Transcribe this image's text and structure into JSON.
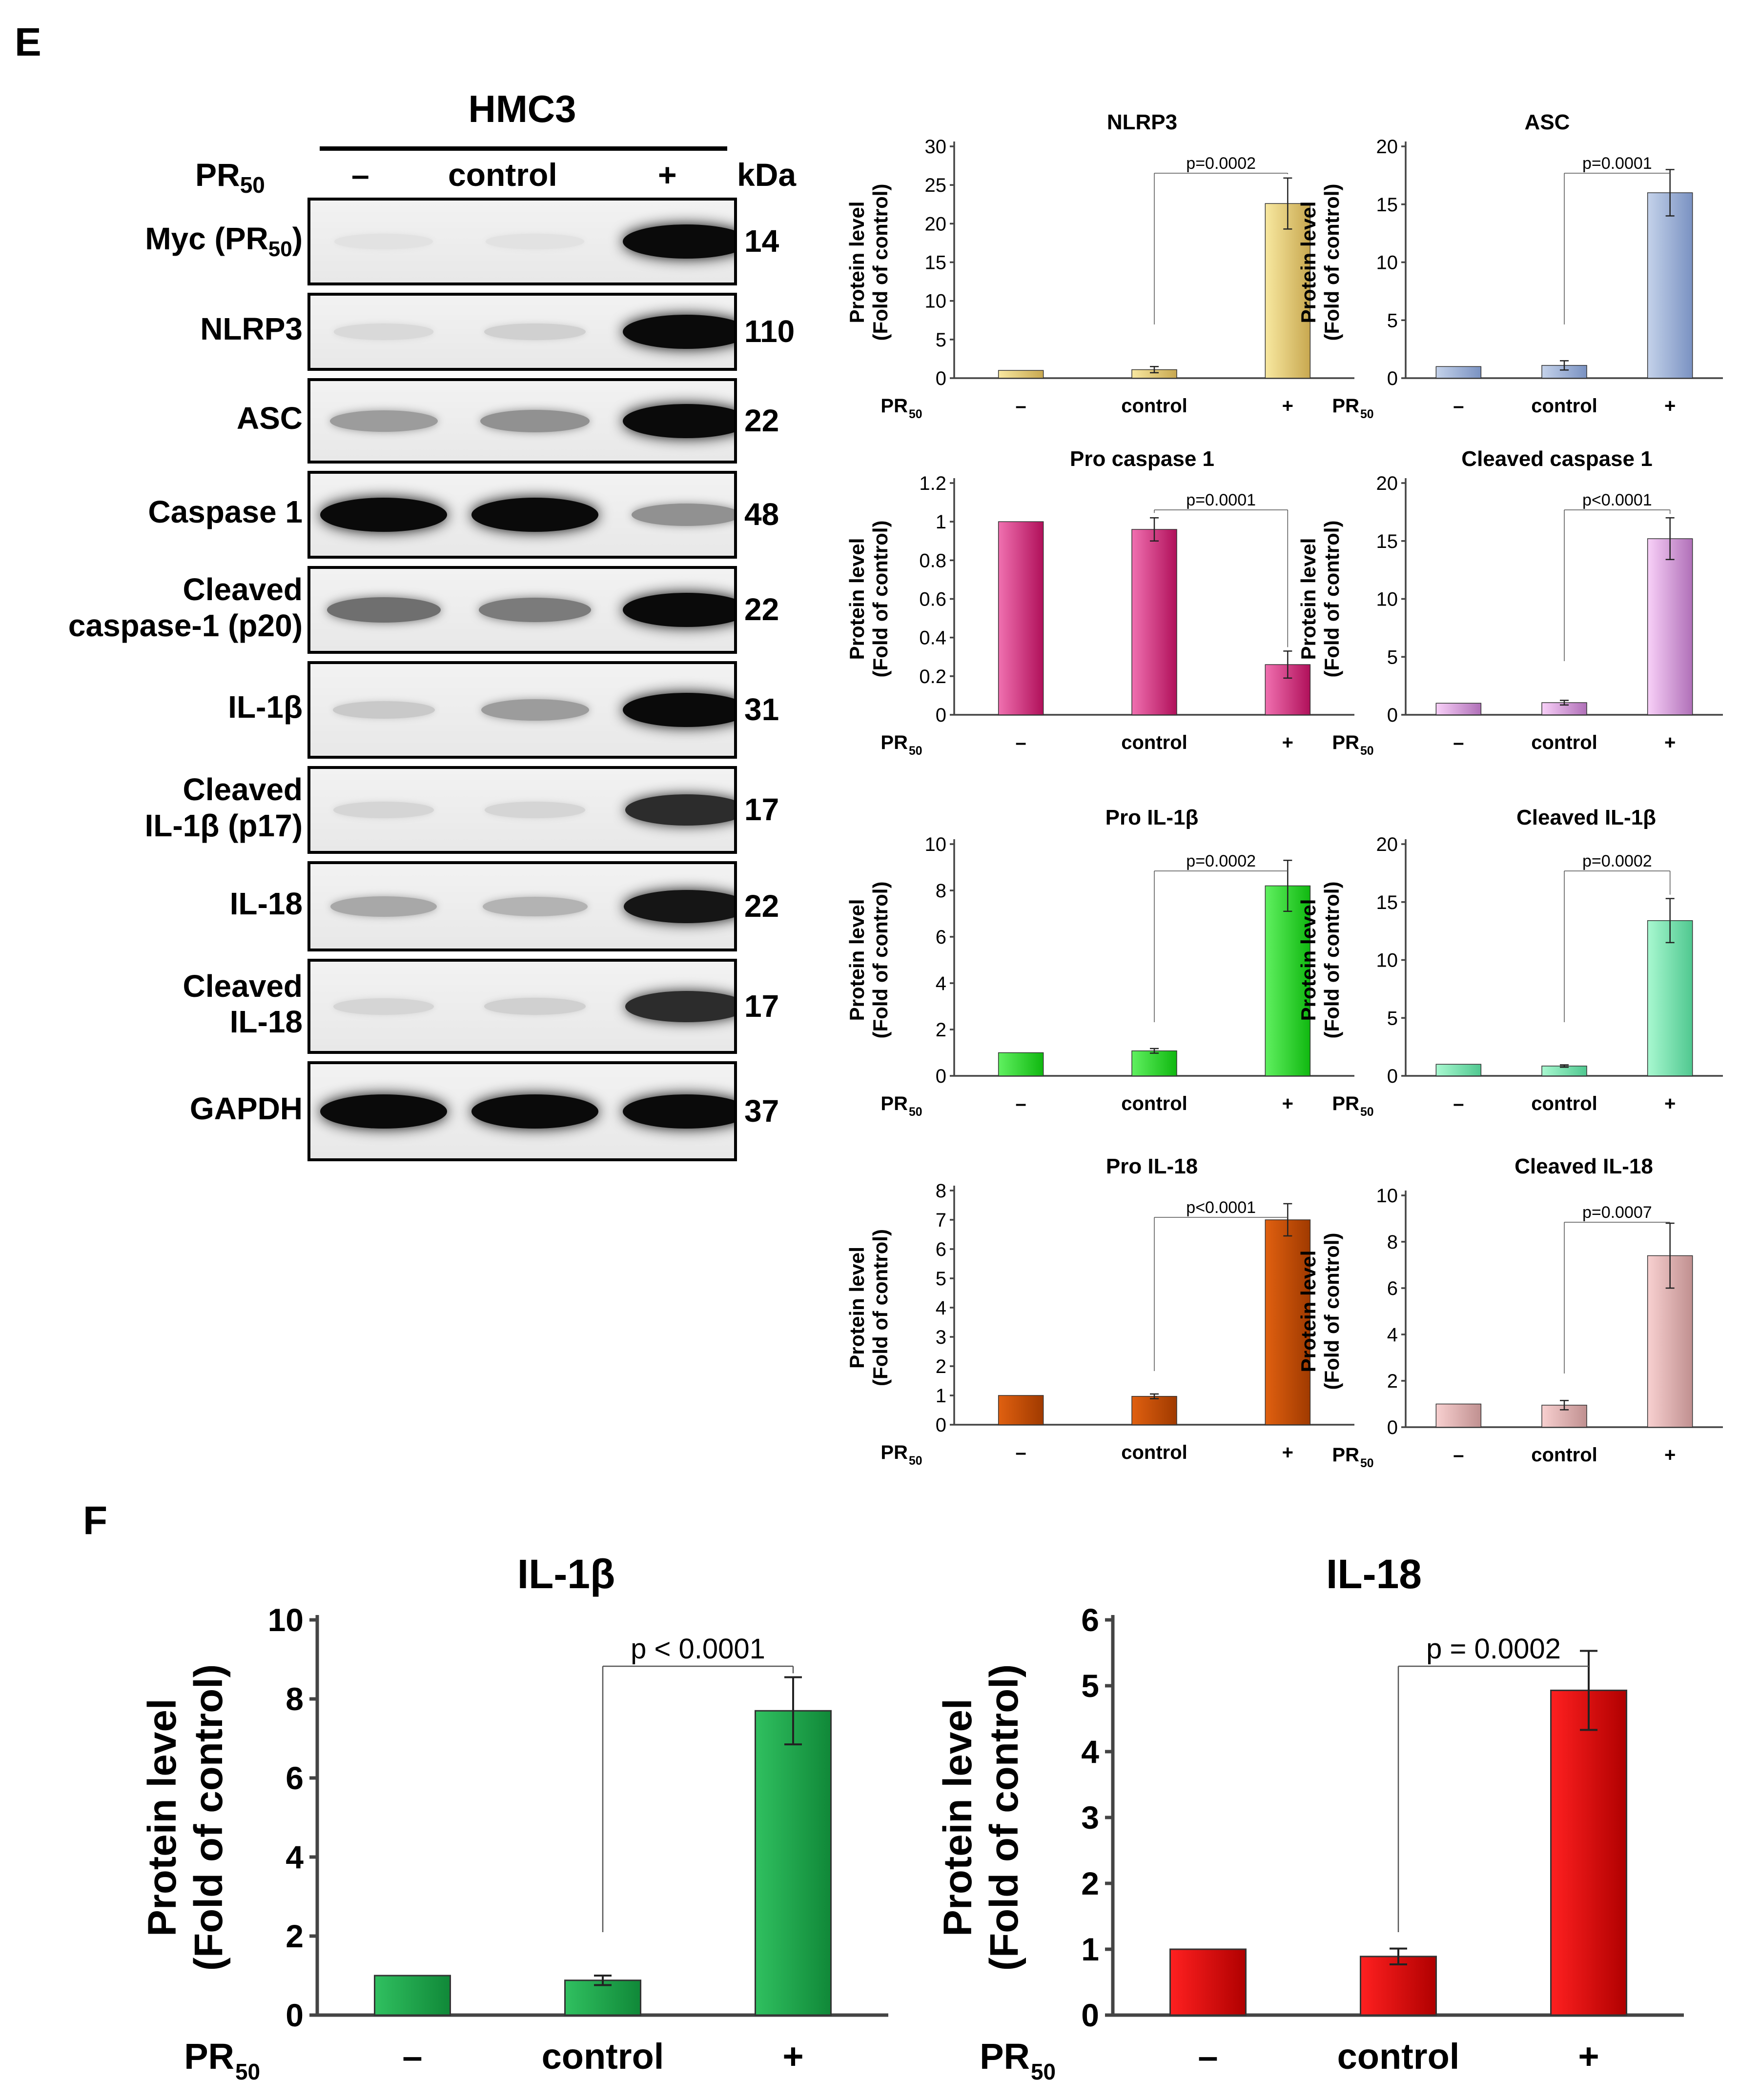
{
  "panels": {
    "e": "E",
    "f": "F"
  },
  "blot": {
    "cell_line": "HMC3",
    "pr_label": "PR",
    "pr_sub": "50",
    "lanes": [
      "–",
      "control",
      "+"
    ],
    "kda_label": "kDa",
    "rows": [
      {
        "name": "Myc (PR",
        "name_sub": "50",
        "name_tail": ")",
        "kda": "14",
        "bands": [
          0.04,
          0.04,
          1.0
        ]
      },
      {
        "name": "NLRP3",
        "kda": "110",
        "bands": [
          0.08,
          0.12,
          1.0
        ]
      },
      {
        "name": "ASC",
        "kda": "22",
        "bands": [
          0.35,
          0.4,
          1.0
        ]
      },
      {
        "name": "Caspase 1",
        "kda": "48",
        "bands": [
          1.0,
          1.0,
          0.4
        ]
      },
      {
        "name": "Cleaved",
        "name2": "caspase-1 (p20)",
        "kda": "22",
        "bands": [
          0.55,
          0.5,
          1.0
        ]
      },
      {
        "name": "IL-1β",
        "kda": "31",
        "bands": [
          0.15,
          0.35,
          1.0
        ]
      },
      {
        "name": "Cleaved",
        "name2": "IL-1β (p17)",
        "kda": "17",
        "bands": [
          0.1,
          0.1,
          0.85
        ]
      },
      {
        "name": "IL-18",
        "kda": "22",
        "bands": [
          0.3,
          0.25,
          0.95
        ]
      },
      {
        "name": "Cleaved",
        "name2": "IL-18",
        "kda": "17",
        "bands": [
          0.1,
          0.12,
          0.85
        ]
      },
      {
        "name": "GAPDH",
        "kda": "37",
        "bands": [
          1.0,
          1.0,
          1.0
        ]
      }
    ]
  },
  "chart_data": [
    {
      "type": "bar",
      "title": "NLRP3",
      "categories": [
        "–",
        "control",
        "+"
      ],
      "values": [
        1,
        1.1,
        22.6
      ],
      "errors": [
        0,
        0.4,
        3.3
      ],
      "ylim": [
        0,
        30
      ],
      "yticks": [
        0,
        5,
        10,
        15,
        20,
        25,
        30
      ],
      "ylabel": "Protein level",
      "ylabel2": "(Fold of control)",
      "xlabel": "PR",
      "xlabel_sub": "50",
      "p_text": "p=0.0002",
      "colors": [
        "#f8e8a0",
        "#c8a850"
      ]
    },
    {
      "type": "bar",
      "title": "ASC",
      "categories": [
        "–",
        "control",
        "+"
      ],
      "values": [
        1,
        1.1,
        16
      ],
      "errors": [
        0,
        0.4,
        2
      ],
      "ylim": [
        0,
        20
      ],
      "yticks": [
        0,
        5,
        10,
        15,
        20
      ],
      "ylabel": "Protein level",
      "ylabel2": "(Fold of control)",
      "xlabel": "PR",
      "xlabel_sub": "50",
      "p_text": "p=0.0001",
      "colors": [
        "#c4d2ea",
        "#7a92c2"
      ]
    },
    {
      "type": "bar",
      "title": "Pro caspase 1",
      "categories": [
        "–",
        "control",
        "+"
      ],
      "values": [
        1,
        0.96,
        0.26
      ],
      "errors": [
        0,
        0.06,
        0.07
      ],
      "ylim": [
        0,
        1.2
      ],
      "yticks": [
        0,
        0.2,
        0.4,
        0.6,
        0.8,
        1,
        1.2
      ],
      "ylabel": "Protein level",
      "ylabel2": "(Fold of control)",
      "xlabel": "PR",
      "xlabel_sub": "50",
      "p_text": "p=0.0001",
      "p_from": 1,
      "colors": [
        "#f070b0",
        "#b0105a"
      ]
    },
    {
      "type": "bar",
      "title": "Cleaved caspase 1",
      "categories": [
        "–",
        "control",
        "+"
      ],
      "values": [
        1,
        1.05,
        15.2
      ],
      "errors": [
        0,
        0.2,
        1.8
      ],
      "ylim": [
        0,
        20
      ],
      "yticks": [
        0,
        5,
        10,
        15,
        20
      ],
      "ylabel": "Protein level",
      "ylabel2": "(Fold of control)",
      "xlabel": "PR",
      "xlabel_sub": "50",
      "p_text": "p<0.0001",
      "colors": [
        "#f8d0f8",
        "#b070b8"
      ]
    },
    {
      "type": "bar",
      "title": "Pro IL-1β",
      "categories": [
        "–",
        "control",
        "+"
      ],
      "values": [
        1,
        1.08,
        8.2
      ],
      "errors": [
        0,
        0.1,
        1.1
      ],
      "ylim": [
        0,
        10
      ],
      "yticks": [
        0,
        2,
        4,
        6,
        8,
        10
      ],
      "ylabel": "Protein level",
      "ylabel2": "(Fold of control)",
      "xlabel": "PR",
      "xlabel_sub": "50",
      "p_text": "p=0.0002",
      "colors": [
        "#60f060",
        "#10b810"
      ]
    },
    {
      "type": "bar",
      "title": "Cleaved IL-1β",
      "categories": [
        "–",
        "control",
        "+"
      ],
      "values": [
        1,
        0.85,
        13.4
      ],
      "errors": [
        0,
        0.1,
        1.9
      ],
      "ylim": [
        0,
        20
      ],
      "yticks": [
        0,
        5,
        10,
        15,
        20
      ],
      "ylabel": "Protein level",
      "ylabel2": "(Fold of control)",
      "xlabel": "PR",
      "xlabel_sub": "50",
      "p_text": "p=0.0002",
      "colors": [
        "#a8f8d0",
        "#50c890"
      ]
    },
    {
      "type": "bar",
      "title": "Pro IL-18",
      "categories": [
        "–",
        "control",
        "+"
      ],
      "values": [
        1,
        0.97,
        7
      ],
      "errors": [
        0,
        0.08,
        0.55
      ],
      "ylim": [
        0,
        8
      ],
      "yticks": [
        0,
        1,
        2,
        3,
        4,
        5,
        6,
        7,
        8
      ],
      "ylabel": "Protein level",
      "ylabel2": "(Fold of control)",
      "xlabel": "PR",
      "xlabel_sub": "50",
      "p_text": "p<0.0001",
      "colors": [
        "#e06010",
        "#a03a00"
      ]
    },
    {
      "type": "bar",
      "title": "Cleaved IL-18",
      "categories": [
        "–",
        "control",
        "+"
      ],
      "values": [
        1,
        0.95,
        7.4
      ],
      "errors": [
        0,
        0.2,
        1.4
      ],
      "ylim": [
        0,
        10
      ],
      "yticks": [
        0,
        2,
        4,
        6,
        8,
        10
      ],
      "ylabel": "Protein level",
      "ylabel2": "(Fold of control)",
      "xlabel": "PR",
      "xlabel_sub": "50",
      "p_text": "p=0.0007",
      "colors": [
        "#f8d0d0",
        "#c09090"
      ]
    },
    {
      "type": "bar",
      "title": "IL-1β",
      "categories": [
        "–",
        "control",
        "+"
      ],
      "values": [
        1,
        0.88,
        7.7
      ],
      "errors": [
        0,
        0.12,
        0.85
      ],
      "ylim": [
        0,
        10
      ],
      "yticks": [
        0,
        2,
        4,
        6,
        8,
        10
      ],
      "ylabel": "Protein level",
      "ylabel2": "(Fold of control)",
      "xlabel": "PR",
      "xlabel_sub": "50",
      "p_text": "p < 0.0001",
      "p_italic_prefix": true,
      "colors": [
        "#30c060",
        "#108838"
      ]
    },
    {
      "type": "bar",
      "title": "IL-18",
      "categories": [
        "–",
        "control",
        "+"
      ],
      "values": [
        1,
        0.89,
        4.93
      ],
      "errors": [
        0,
        0.12,
        0.6
      ],
      "ylim": [
        0,
        6
      ],
      "yticks": [
        0,
        1,
        2,
        3,
        4,
        5,
        6
      ],
      "ylabel": "Protein level",
      "ylabel2": "(Fold of control)",
      "xlabel": "PR",
      "xlabel_sub": "50",
      "p_text": "p = 0.0002",
      "p_italic_prefix": true,
      "colors": [
        "#ff2020",
        "#b00000"
      ]
    }
  ]
}
